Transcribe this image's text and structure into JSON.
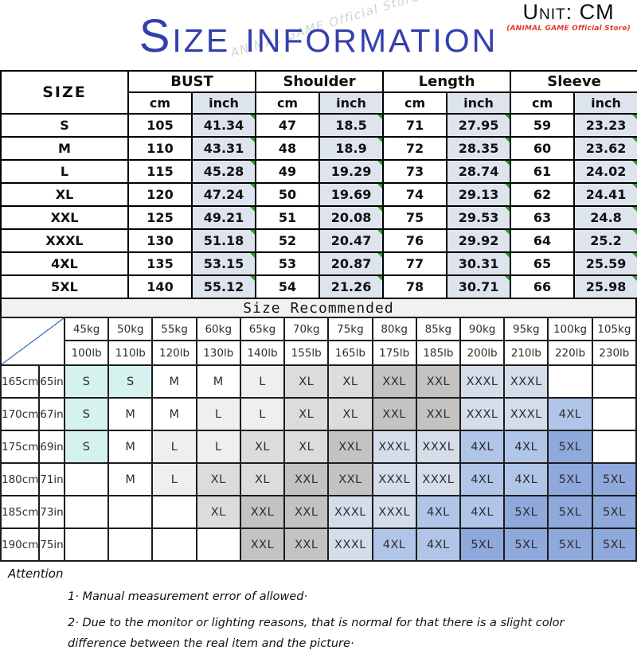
{
  "header": {
    "unit_label": "Unit: CM",
    "store_label": "(ANIMAL GAME Official Store)",
    "title": "Size information",
    "watermark": "ANIMAL GAME Official Store"
  },
  "colors": {
    "title_blue": "#3340ab",
    "store_red": "#e03a30",
    "inch_cell_bg": "#dde4ee",
    "green_marker": "#1ea11e",
    "diagonal_line": "#4472c4",
    "recommended_bar_bg": "#f1f1f1"
  },
  "size_table": {
    "corner_label": "SIZE",
    "groups": [
      "BUST",
      "Shoulder",
      "Length",
      "Sleeve"
    ],
    "unit_cm": "cm",
    "unit_inch": "inch",
    "rows": [
      {
        "size": "S",
        "values": [
          "105",
          "41.34",
          "47",
          "18.5",
          "71",
          "27.95",
          "59",
          "23.23"
        ]
      },
      {
        "size": "M",
        "values": [
          "110",
          "43.31",
          "48",
          "18.9",
          "72",
          "28.35",
          "60",
          "23.62"
        ]
      },
      {
        "size": "L",
        "values": [
          "115",
          "45.28",
          "49",
          "19.29",
          "73",
          "28.74",
          "61",
          "24.02"
        ]
      },
      {
        "size": "XL",
        "values": [
          "120",
          "47.24",
          "50",
          "19.69",
          "74",
          "29.13",
          "62",
          "24.41"
        ]
      },
      {
        "size": "XXL",
        "values": [
          "125",
          "49.21",
          "51",
          "20.08",
          "75",
          "29.53",
          "63",
          "24.8"
        ]
      },
      {
        "size": "XXXL",
        "values": [
          "130",
          "51.18",
          "52",
          "20.47",
          "76",
          "29.92",
          "64",
          "25.2"
        ]
      },
      {
        "size": "4XL",
        "values": [
          "135",
          "53.15",
          "53",
          "20.87",
          "77",
          "30.31",
          "65",
          "25.59"
        ]
      },
      {
        "size": "5XL",
        "values": [
          "140",
          "55.12",
          "54",
          "21.26",
          "78",
          "30.71",
          "66",
          "25.98"
        ]
      }
    ]
  },
  "recommend_table": {
    "title": "Size Recommended",
    "weights_kg": [
      "45kg",
      "50kg",
      "55kg",
      "60kg",
      "65kg",
      "70kg",
      "75kg",
      "80kg",
      "85kg",
      "90kg",
      "95kg",
      "100kg",
      "105kg"
    ],
    "weights_lb": [
      "100lb",
      "110lb",
      "120lb",
      "130lb",
      "140lb",
      "155lb",
      "165lb",
      "175lb",
      "185lb",
      "200lb",
      "210lb",
      "220lb",
      "230lb"
    ],
    "rows": [
      {
        "height_cm": "165cm",
        "height_in": "65in",
        "sizes": [
          "S",
          "S",
          "M",
          "M",
          "L",
          "XL",
          "XL",
          "XXL",
          "XXL",
          "XXXL",
          "XXXL",
          "",
          ""
        ]
      },
      {
        "height_cm": "170cm",
        "height_in": "67in",
        "sizes": [
          "S",
          "M",
          "M",
          "L",
          "L",
          "XL",
          "XL",
          "XXL",
          "XXL",
          "XXXL",
          "XXXL",
          "4XL",
          ""
        ]
      },
      {
        "height_cm": "175cm",
        "height_in": "69in",
        "sizes": [
          "S",
          "M",
          "L",
          "L",
          "XL",
          "XL",
          "XXL",
          "XXXL",
          "XXXL",
          "4XL",
          "4XL",
          "5XL",
          ""
        ]
      },
      {
        "height_cm": "180cm",
        "height_in": "71in",
        "sizes": [
          "",
          "M",
          "L",
          "XL",
          "XL",
          "XXL",
          "XXL",
          "XXXL",
          "XXXL",
          "4XL",
          "4XL",
          "5XL",
          "5XL"
        ]
      },
      {
        "height_cm": "185cm",
        "height_in": "73in",
        "sizes": [
          "",
          "",
          "",
          "XL",
          "XXL",
          "XXL",
          "XXXL",
          "XXXL",
          "4XL",
          "4XL",
          "5XL",
          "5XL",
          "5XL"
        ]
      },
      {
        "height_cm": "190cm",
        "height_in": "75in",
        "sizes": [
          "",
          "",
          "",
          "",
          "XXL",
          "XXL",
          "XXXL",
          "4XL",
          "4XL",
          "5XL",
          "5XL",
          "5XL",
          "5XL"
        ]
      }
    ],
    "size_colors": {
      "S": "#d6f2ef",
      "M": "#ffffff",
      "L": "#efefee",
      "XL": "#dcdcdb",
      "XXL": "#c3c3c2",
      "XXXL": "#d4dde9",
      "4XL": "#b0c5e8",
      "5XL": "#8fa9dc"
    }
  },
  "attention": {
    "title": "Attention",
    "items": [
      "1·  Manual measurement error of allowed·",
      "2·  Due to the monitor or lighting reasons, that is normal for that there is a slight color difference between the real item and the picture·"
    ]
  }
}
